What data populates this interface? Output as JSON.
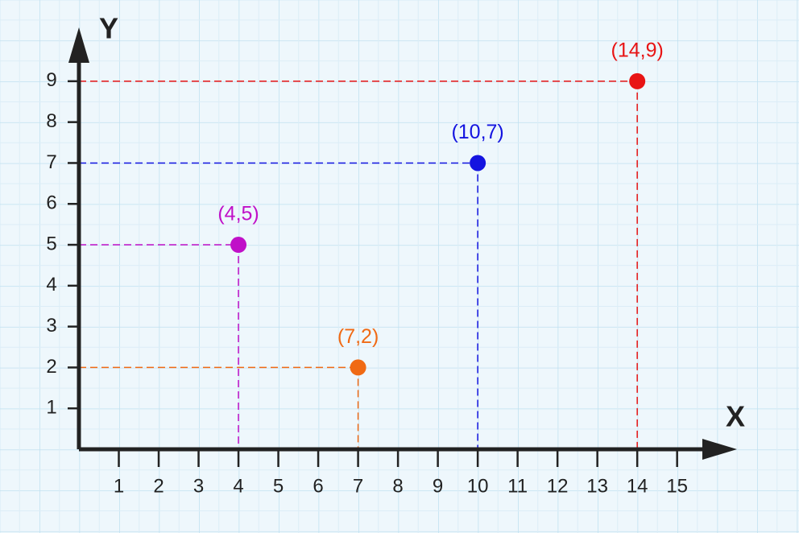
{
  "chart_data": {
    "type": "scatter",
    "x_label": "X",
    "y_label": "Y",
    "x": [
      4,
      7,
      10,
      14
    ],
    "values": [
      5,
      2,
      7,
      9
    ],
    "value_labels": [
      "(4,5)",
      "(7,2)",
      "(10,7)",
      "(14,9)"
    ],
    "colors": [
      "#c010c8",
      "#f06a14",
      "#1414e0",
      "#e81414"
    ],
    "xlim": [
      0,
      16.4
    ],
    "ylim": [
      0,
      10.1
    ],
    "xticks": [
      1,
      2,
      3,
      4,
      5,
      6,
      7,
      8,
      9,
      10,
      11,
      12,
      13,
      14,
      15
    ],
    "yticks": [
      1,
      2,
      3,
      4,
      5,
      6,
      7,
      8,
      9
    ]
  }
}
